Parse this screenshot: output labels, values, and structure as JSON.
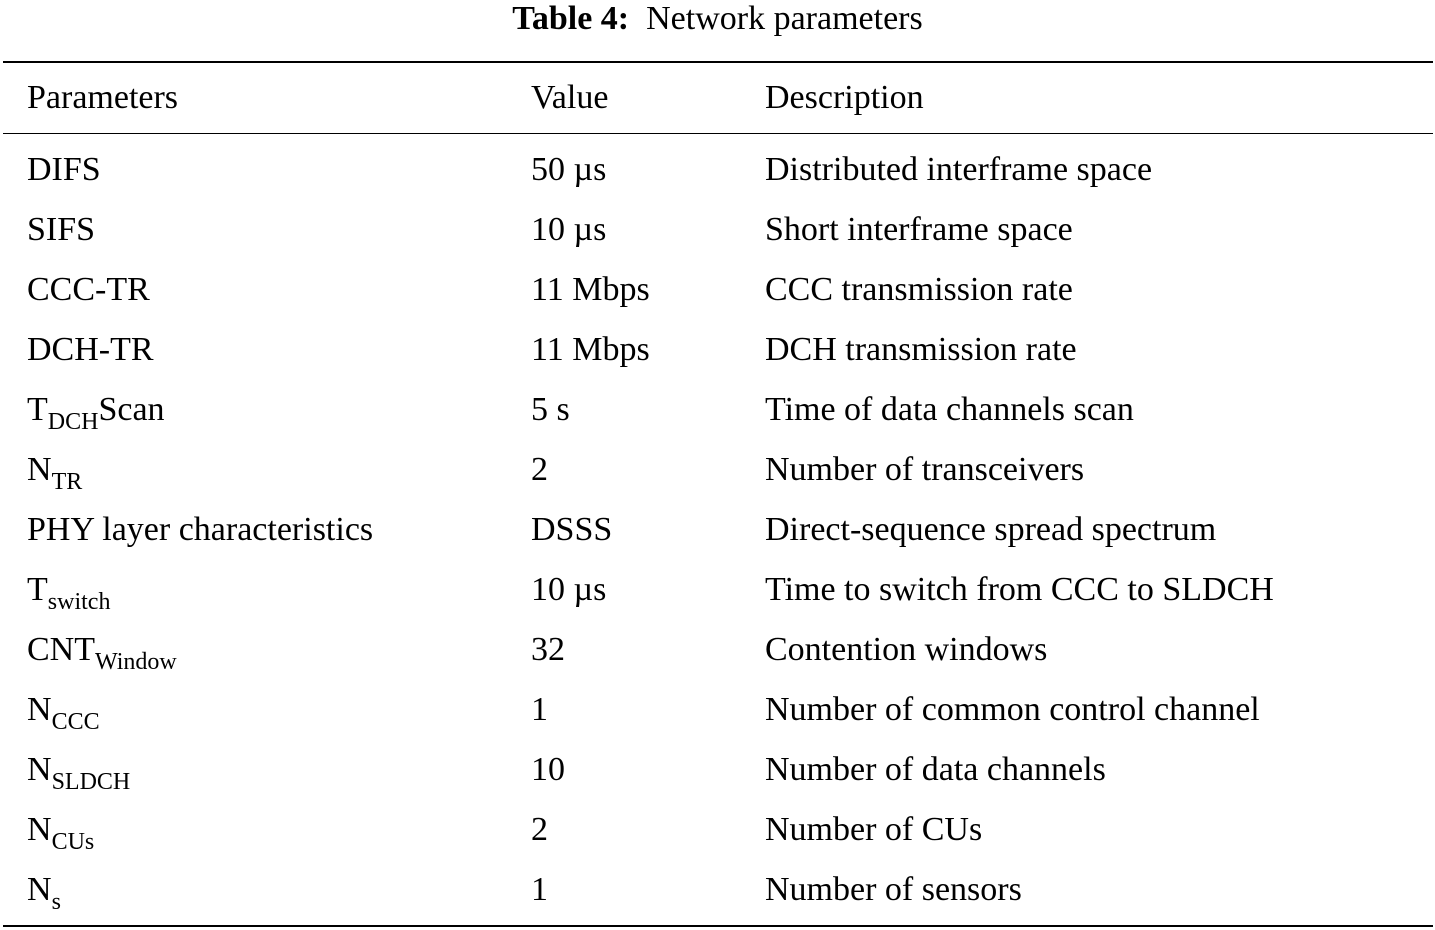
{
  "caption": {
    "label": "Table 4:",
    "title": "Network parameters"
  },
  "headers": {
    "param": "Parameters",
    "value": "Value",
    "description": "Description"
  },
  "rows": [
    {
      "param": {
        "main": "DIFS",
        "sub": "",
        "suffix": ""
      },
      "value": "50 µs",
      "description": "Distributed interframe space"
    },
    {
      "param": {
        "main": "SIFS",
        "sub": "",
        "suffix": ""
      },
      "value": "10 µs",
      "description": "Short interframe space"
    },
    {
      "param": {
        "main": "CCC-TR",
        "sub": "",
        "suffix": ""
      },
      "value": "11 Mbps",
      "description": "CCC transmission rate"
    },
    {
      "param": {
        "main": "DCH-TR",
        "sub": "",
        "suffix": ""
      },
      "value": "11 Mbps",
      "description": "DCH transmission rate"
    },
    {
      "param": {
        "main": "T",
        "sub": "DCH",
        "suffix": "Scan"
      },
      "value": "5 s",
      "description": "Time of data channels scan"
    },
    {
      "param": {
        "main": "N",
        "sub": "TR",
        "suffix": ""
      },
      "value": "2",
      "description": "Number of transceivers"
    },
    {
      "param": {
        "main": "PHY layer characteristics",
        "sub": "",
        "suffix": ""
      },
      "value": "DSSS",
      "description": "Direct-sequence spread spectrum"
    },
    {
      "param": {
        "main": "T",
        "sub": "switch",
        "suffix": ""
      },
      "value": "10 µs",
      "description": "Time to switch from CCC to SLDCH"
    },
    {
      "param": {
        "main": "CNT",
        "sub": "Window",
        "suffix": ""
      },
      "value": "32",
      "description": "Contention windows"
    },
    {
      "param": {
        "main": "N",
        "sub": "CCC",
        "suffix": ""
      },
      "value": "1",
      "description": "Number of common control channel"
    },
    {
      "param": {
        "main": "N",
        "sub": "SLDCH",
        "suffix": ""
      },
      "value": "10",
      "description": "Number of data channels"
    },
    {
      "param": {
        "main": "N",
        "sub": "CUs",
        "suffix": ""
      },
      "value": "2",
      "description": "Number of CUs"
    },
    {
      "param": {
        "main": "N",
        "sub": "s",
        "suffix": ""
      },
      "value": "1",
      "description": "Number of sensors"
    }
  ]
}
